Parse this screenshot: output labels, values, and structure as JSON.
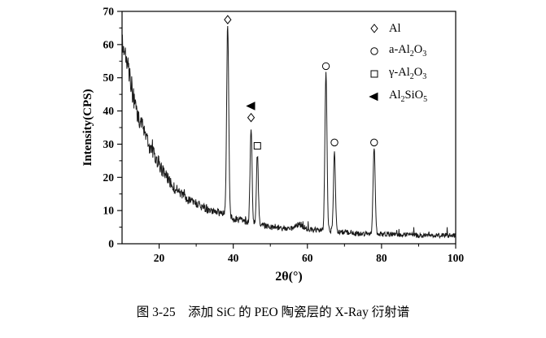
{
  "caption": "图 3-25　添加 SiC 的 PEO 陶瓷层的 X-Ray 衍射谱",
  "chart_data": {
    "type": "line",
    "title": "",
    "xlabel": "2θ(°)",
    "ylabel": "Intensity(CPS)",
    "xlim": [
      10,
      100
    ],
    "ylim": [
      0,
      70
    ],
    "x_ticks": [
      20,
      40,
      60,
      80,
      100
    ],
    "y_ticks": [
      0,
      10,
      20,
      30,
      40,
      50,
      60,
      70
    ],
    "grid": false,
    "line_color": "#1a1a1a",
    "noise_amplitude": 1.2,
    "background_profile": [
      [
        10,
        63
      ],
      [
        11,
        56
      ],
      [
        12,
        50
      ],
      [
        13,
        45
      ],
      [
        14,
        40
      ],
      [
        15,
        37
      ],
      [
        16,
        33
      ],
      [
        17,
        30
      ],
      [
        18,
        28
      ],
      [
        20,
        24
      ],
      [
        22,
        20
      ],
      [
        24,
        17
      ],
      [
        26,
        15
      ],
      [
        28,
        13
      ],
      [
        30,
        12
      ],
      [
        32,
        11
      ],
      [
        34,
        10
      ],
      [
        36,
        9.5
      ],
      [
        38,
        9
      ],
      [
        40,
        7.5
      ],
      [
        42,
        7
      ],
      [
        44,
        6.5
      ],
      [
        46,
        6
      ],
      [
        48,
        5.5
      ],
      [
        50,
        5
      ],
      [
        53,
        4.5
      ],
      [
        56,
        4.8
      ],
      [
        57,
        5.5
      ],
      [
        58,
        6
      ],
      [
        59,
        5
      ],
      [
        60,
        4.5
      ],
      [
        63,
        4
      ],
      [
        66,
        4
      ],
      [
        70,
        3.5
      ],
      [
        74,
        3
      ],
      [
        78,
        3
      ],
      [
        82,
        2.8
      ],
      [
        86,
        2.8
      ],
      [
        90,
        2.5
      ],
      [
        95,
        2.5
      ],
      [
        100,
        2.5
      ]
    ],
    "peaks": [
      {
        "two_theta": 38.5,
        "amplitude": 57,
        "sigma": 0.28,
        "phase": "Al"
      },
      {
        "two_theta": 44.8,
        "amplitude": 29,
        "sigma": 0.26,
        "phase": "Al"
      },
      {
        "two_theta": 46.5,
        "amplitude": 21,
        "sigma": 0.26,
        "phase": "γ-Al_2O_3"
      },
      {
        "two_theta": 65.0,
        "amplitude": 47.5,
        "sigma": 0.28,
        "phase": "a-Al_2O_3"
      },
      {
        "two_theta": 67.3,
        "amplitude": 24,
        "sigma": 0.26,
        "phase": "a-Al_2O_3"
      },
      {
        "two_theta": 78.0,
        "amplitude": 26,
        "sigma": 0.28,
        "phase": "a-Al_2O_3"
      }
    ],
    "peak_markers": [
      {
        "marker": "diamond",
        "x": 38.5,
        "y": 67.5
      },
      {
        "marker": "triangle-left-filled",
        "x": 44.9,
        "y": 41.5
      },
      {
        "marker": "diamond",
        "x": 44.8,
        "y": 38.0
      },
      {
        "marker": "square",
        "x": 46.5,
        "y": 29.5
      },
      {
        "marker": "circle",
        "x": 65.0,
        "y": 53.5
      },
      {
        "marker": "circle",
        "x": 67.3,
        "y": 30.5
      },
      {
        "marker": "circle",
        "x": 78.0,
        "y": 30.5
      }
    ],
    "legend": {
      "position": "top-right",
      "items": [
        {
          "marker": "diamond",
          "label": "Al"
        },
        {
          "marker": "circle",
          "label": "a-Al_2O_3"
        },
        {
          "marker": "square",
          "label": "γ-Al_2O_3"
        },
        {
          "marker": "triangle-left-filled",
          "label": "Al_2SiO_5"
        }
      ]
    }
  }
}
